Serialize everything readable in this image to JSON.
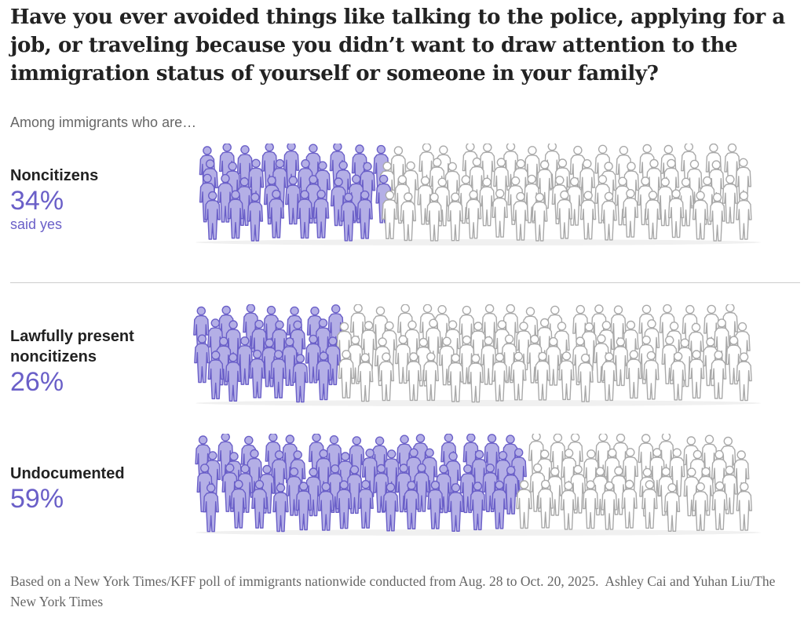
{
  "title": "Have you ever avoided things like talking to the police, applying for a job, or traveling because you didn’t want to draw attention to the immigration status of yourself or someone in your family?",
  "subtitle": "Among immigrants who are…",
  "colors": {
    "yes_fill": "#b4afe6",
    "yes_stroke": "#6a5fc8",
    "no_fill": "#ffffff",
    "no_stroke": "#a9a9a9"
  },
  "chart_data": {
    "type": "pictogram",
    "title": "Have you ever avoided things like talking to the police, applying for a job, or traveling because you didn’t want to draw attention to the immigration status of yourself or someone in your family?",
    "unit": "percent said yes",
    "figures_per_group": 100,
    "groups": [
      {
        "label": "Noncitizens",
        "value": 34,
        "value_label": "34%",
        "note": "said yes"
      },
      {
        "label": "Lawfully present noncitizens",
        "value": 26,
        "value_label": "26%"
      },
      {
        "label": "Undocumented",
        "value": 59,
        "value_label": "59%"
      }
    ]
  },
  "footer": {
    "source": "Based on a New York Times/KFF poll of immigrants nationwide conducted from Aug. 28 to Oct. 20, 2025.",
    "credit": "Ashley Cai and Yuhan Liu/The New York Times"
  }
}
